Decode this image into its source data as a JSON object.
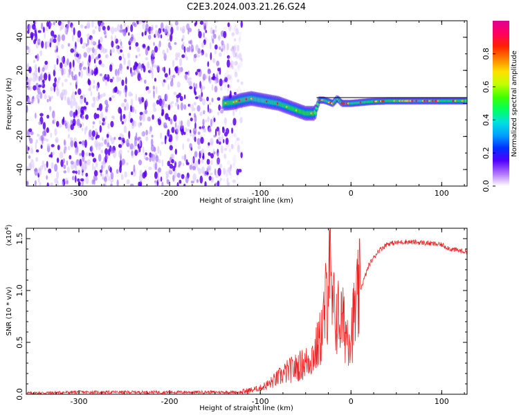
{
  "title": "C2E3.2024.003.21.26.G24",
  "chart_data": [
    {
      "type": "heatmap",
      "xlabel": "Height of straight line (km)",
      "ylabel": "Frequency (Hz)",
      "xlim": [
        -358,
        128
      ],
      "ylim": [
        -50,
        50
      ],
      "x_ticks": [
        -300,
        -200,
        -100,
        0,
        100
      ],
      "x_tick_labels": [
        "-300",
        "-200",
        "-100",
        "0",
        "100"
      ],
      "y_ticks": [
        -40,
        -20,
        0,
        20,
        40
      ],
      "y_tick_labels": [
        "-40",
        "-20",
        "0",
        "20",
        "40"
      ],
      "colorbar": {
        "label": "Normalized spectral amplitude",
        "range": [
          0,
          1
        ],
        "ticks": [
          0.0,
          0.2,
          0.4,
          0.6,
          0.8
        ],
        "tick_labels": [
          "0.0",
          "0.2",
          "0.4",
          "0.6",
          "0.8"
        ],
        "colors": [
          "#ffffff",
          "#b070ff",
          "#5000ff",
          "#0030ff",
          "#00a0ff",
          "#00e0e0",
          "#00ff60",
          "#40ff00",
          "#c0ff00",
          "#ffe000",
          "#ff8000",
          "#ff2000",
          "#ff0060",
          "#e00090"
        ]
      },
      "noise_region_x": [
        -358,
        -120
      ],
      "signal_ridge": {
        "x": [
          -140,
          -130,
          -120,
          -110,
          -100,
          -90,
          -80,
          -70,
          -60,
          -50,
          -40,
          -35,
          -30,
          -20,
          -15,
          -10,
          0,
          20,
          40,
          60,
          80,
          100,
          128
        ],
        "y": [
          0,
          0.5,
          2,
          3,
          2,
          1,
          0,
          -2,
          -4,
          -6,
          -6,
          2,
          2,
          0,
          3,
          0,
          0,
          1,
          1.5,
          1.5,
          1.5,
          1.5,
          1.5
        ]
      },
      "reference_line_y": 3.5
    },
    {
      "type": "line",
      "xlabel": "Height of straight line (km)",
      "ylabel": "SNR (10 * v/v)",
      "y_multiplier_label": "(x10",
      "y_multiplier_exp": "4",
      "y_multiplier_close": ")",
      "xlim": [
        -358,
        128
      ],
      "ylim": [
        0,
        1.6
      ],
      "x_ticks": [
        -300,
        -200,
        -100,
        0,
        100
      ],
      "x_tick_labels": [
        "-300",
        "-200",
        "-100",
        "0",
        "100"
      ],
      "y_ticks": [
        0.0,
        0.5,
        1.0,
        1.5
      ],
      "y_tick_labels": [
        "0.0",
        "0.5",
        "1.0",
        "1.5"
      ],
      "series_color": "#ee2222",
      "x": [
        -358,
        -300,
        -250,
        -200,
        -150,
        -120,
        -110,
        -100,
        -90,
        -80,
        -70,
        -60,
        -50,
        -40,
        -35,
        -30,
        -26,
        -24,
        -22,
        -20,
        -15,
        -10,
        -5,
        0,
        5,
        10,
        20,
        30,
        40,
        60,
        80,
        100,
        110,
        128
      ],
      "y": [
        0.01,
        0.02,
        0.02,
        0.02,
        0.02,
        0.02,
        0.04,
        0.06,
        0.1,
        0.16,
        0.22,
        0.26,
        0.3,
        0.4,
        0.5,
        0.7,
        1.0,
        1.5,
        0.9,
        0.8,
        0.75,
        0.7,
        0.6,
        0.6,
        0.8,
        1.0,
        1.25,
        1.38,
        1.45,
        1.47,
        1.46,
        1.44,
        1.4,
        1.37
      ]
    }
  ]
}
